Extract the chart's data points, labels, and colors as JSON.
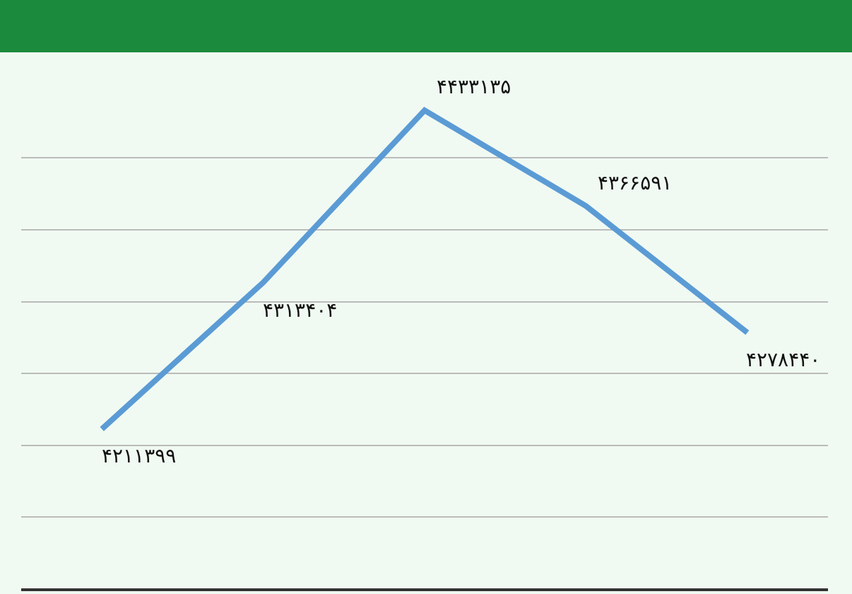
{
  "chart_data": {
    "type": "line",
    "categories": [
      null,
      null,
      null,
      null,
      null
    ],
    "series": [
      {
        "color": "#5b9bd5",
        "values": [
          4211399,
          4313404,
          4433135,
          4366591,
          4278440
        ],
        "value_labels": [
          "۴۲۱۱۳۹۹",
          "۴۳۱۳۴۰۴",
          "۴۴۳۳۱۳۵",
          "۴۳۶۶۵۹۱",
          "۴۲۷۸۴۴۰"
        ]
      }
    ],
    "grid": "y",
    "tick_labels": false,
    "marker": "none",
    "line_style": "solid"
  }
}
